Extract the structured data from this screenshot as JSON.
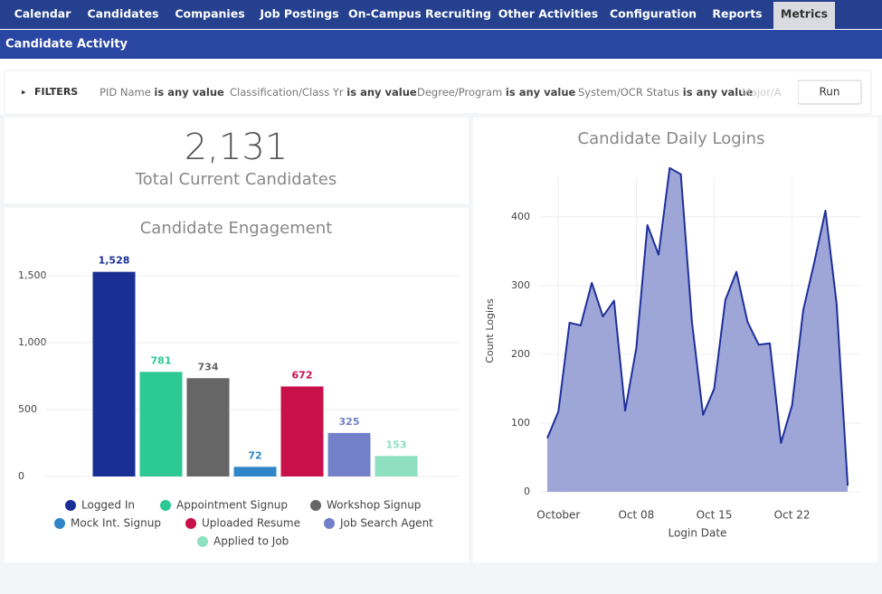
{
  "nav": {
    "items": [
      "Calendar",
      "Candidates",
      "Companies",
      "Job Postings",
      "On-Campus Recruiting",
      "Other Activities",
      "Configuration",
      "Reports",
      "Metrics"
    ],
    "active": 8
  },
  "header": {
    "title": "Candidate Activity"
  },
  "filters": {
    "label": "FILTERS",
    "items": [
      {
        "name": "PID Name",
        "op": "is any value"
      },
      {
        "name": "Classification/Class Yr",
        "op": "is any value"
      },
      {
        "name": "Degree/Program",
        "op": "is any value"
      },
      {
        "name": "System/OCR Status",
        "op": "is any value"
      },
      {
        "name": "Major/A"
      }
    ],
    "run": "Run"
  },
  "kpi": {
    "value": "2,131",
    "label": "Total Current Candidates"
  },
  "chart_data": [
    {
      "type": "bar",
      "title": "Candidate Engagement",
      "categories": [
        "Logged In",
        "Appointment Signup",
        "Workshop Signup",
        "Mock Int. Signup",
        "Uploaded Resume",
        "Job Search Agent",
        "Applied to Job"
      ],
      "values": [
        1528,
        781,
        734,
        72,
        672,
        325,
        153
      ],
      "value_labels": [
        "1,528",
        "781",
        "734",
        "72",
        "672",
        "325",
        "153"
      ],
      "colors": [
        "#1a2f96",
        "#2dc994",
        "#666666",
        "#2e86c8",
        "#c8104a",
        "#7180c8",
        "#8ee0c0"
      ],
      "ylim": [
        0,
        1600
      ],
      "yticks": [
        0,
        500,
        {
          "value": 1000,
          "label": "1,000"
        },
        {
          "value": 1500,
          "label": "1,500"
        }
      ],
      "grid": true
    },
    {
      "type": "area",
      "title": "Candidate Daily Logins",
      "xlabel": "Login Date",
      "ylabel": "Count Logins",
      "x": [
        "Sep 30",
        "Oct 01",
        "Oct 02",
        "Oct 03",
        "Oct 04",
        "Oct 05",
        "Oct 06",
        "Oct 07",
        "Oct 08",
        "Oct 09",
        "Oct 10",
        "Oct 11",
        "Oct 12",
        "Oct 13",
        "Oct 14",
        "Oct 15",
        "Oct 16",
        "Oct 17",
        "Oct 18",
        "Oct 19",
        "Oct 20",
        "Oct 21",
        "Oct 22",
        "Oct 23",
        "Oct 24",
        "Oct 25",
        "Oct 26",
        "Oct 27"
      ],
      "series": [
        {
          "name": "Count Logins",
          "color": "#1f2f9a",
          "fill": "#9ea6d8",
          "values": [
            78,
            117,
            246,
            242,
            304,
            255,
            278,
            118,
            209,
            388,
            345,
            471,
            462,
            247,
            112,
            150,
            279,
            320,
            247,
            214,
            216,
            71,
            126,
            264,
            334,
            409,
            274,
            9
          ]
        }
      ],
      "ylim": [
        0,
        480
      ],
      "yticks": [
        0,
        100,
        200,
        300,
        400
      ],
      "xticks": [
        {
          "value": "Oct 01",
          "label": "October"
        },
        "Oct 08",
        "Oct 15",
        "Oct 22"
      ],
      "grid": true
    }
  ]
}
